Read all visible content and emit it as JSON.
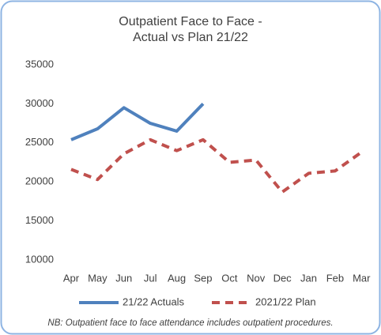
{
  "chart_data": {
    "type": "line",
    "title": [
      "Outpatient Face to Face -",
      "Actual vs Plan 21/22"
    ],
    "categories": [
      "Apr",
      "May",
      "Jun",
      "Jul",
      "Aug",
      "Sep",
      "Oct",
      "Nov",
      "Dec",
      "Jan",
      "Feb",
      "Mar"
    ],
    "series": [
      {
        "name": "21/22 Actuals",
        "color": "#4f81bd",
        "dashed": false,
        "values": [
          25400,
          26800,
          29500,
          27500,
          26500,
          30000,
          null,
          null,
          null,
          null,
          null,
          null
        ]
      },
      {
        "name": "2021/22 Plan",
        "color": "#c0504d",
        "dashed": true,
        "values": [
          21600,
          20300,
          23600,
          25400,
          24000,
          25400,
          22500,
          22800,
          18700,
          21100,
          21400,
          23800
        ]
      }
    ],
    "ylim": [
      10000,
      35000
    ],
    "yticks": [
      10000,
      15000,
      20000,
      25000,
      30000,
      35000
    ],
    "grid": false,
    "legend": "bottom",
    "note": "NB: Outpatient face to face attendance includes outpatient procedures."
  }
}
